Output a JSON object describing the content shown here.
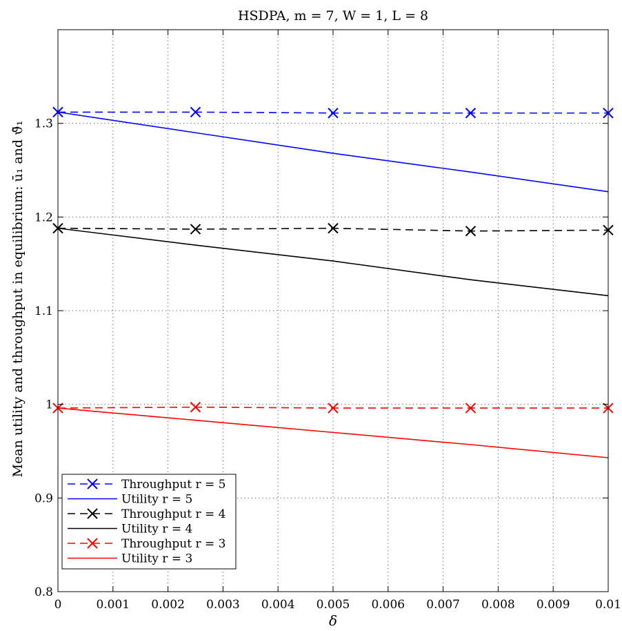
{
  "chart_data": {
    "type": "line",
    "title": "HSDPA, m = 7, W = 1, L = 8",
    "xlabel": "δ",
    "ylabel": "Mean utility and throughput in equilibrium: ū₁ and ϑ̄₁",
    "xlim": [
      0,
      0.01
    ],
    "ylim": [
      0.8,
      1.4
    ],
    "x_ticks": [
      0,
      0.001,
      0.002,
      0.003,
      0.004,
      0.005,
      0.006,
      0.007,
      0.008,
      0.009,
      0.01
    ],
    "x_tick_labels": [
      "0",
      "0.001",
      "0.002",
      "0.003",
      "0.004",
      "0.005",
      "0.006",
      "0.007",
      "0.008",
      "0.009",
      "0.01"
    ],
    "y_ticks": [
      0.8,
      0.9,
      1,
      1.1,
      1.2,
      1.3
    ],
    "y_tick_labels": [
      "0.8",
      "0.9",
      "1",
      "1.1",
      "1.2",
      "1.3"
    ],
    "grid": true,
    "legend_position": "bottom-left",
    "series": [
      {
        "name": "Throughput r = 5",
        "color": "#0000ff",
        "dash": "dashed",
        "marker": "x",
        "x": [
          0,
          0.0025,
          0.005,
          0.0075,
          0.01
        ],
        "y": [
          1.312,
          1.312,
          1.311,
          1.311,
          1.311
        ]
      },
      {
        "name": "Utility r = 5",
        "color": "#0000ff",
        "dash": "solid",
        "marker": "none",
        "x": [
          0,
          0.0025,
          0.005,
          0.0075,
          0.01
        ],
        "y": [
          1.312,
          1.29,
          1.268,
          1.248,
          1.227
        ]
      },
      {
        "name": "Throughput r = 4",
        "color": "#000000",
        "dash": "dashed",
        "marker": "x",
        "x": [
          0,
          0.0025,
          0.005,
          0.0075,
          0.01
        ],
        "y": [
          1.188,
          1.187,
          1.188,
          1.185,
          1.186
        ]
      },
      {
        "name": "Utility r = 4",
        "color": "#000000",
        "dash": "solid",
        "marker": "none",
        "x": [
          0,
          0.0025,
          0.005,
          0.0075,
          0.01
        ],
        "y": [
          1.188,
          1.17,
          1.153,
          1.133,
          1.116
        ]
      },
      {
        "name": "Throughput r = 3",
        "color": "#ff0000",
        "dash": "dashed",
        "marker": "x",
        "x": [
          0,
          0.0025,
          0.005,
          0.0075,
          0.01
        ],
        "y": [
          0.996,
          0.997,
          0.996,
          0.996,
          0.996
        ]
      },
      {
        "name": "Utility r = 3",
        "color": "#ff0000",
        "dash": "solid",
        "marker": "none",
        "x": [
          0,
          0.0025,
          0.005,
          0.0075,
          0.01
        ],
        "y": [
          0.996,
          0.983,
          0.97,
          0.957,
          0.943
        ]
      }
    ]
  }
}
